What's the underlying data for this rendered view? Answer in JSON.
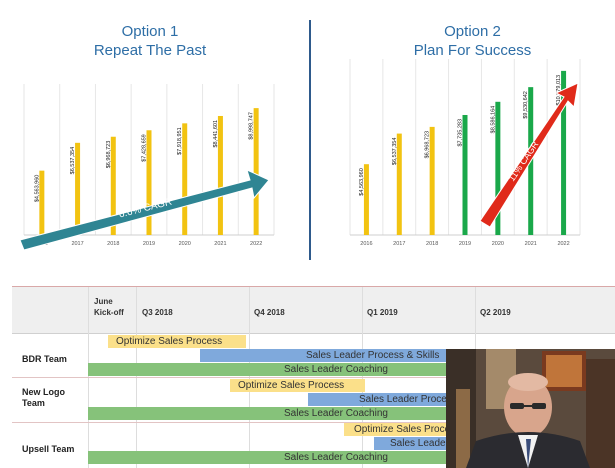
{
  "option1": {
    "title_line1": "Option 1",
    "title_line2": "Repeat The Past",
    "cagr_label": "6.6% CAGR"
  },
  "option2": {
    "title_line1": "Option 2",
    "title_line2": "Plan For Success",
    "cagr_label": "11% CAGR"
  },
  "colors": {
    "title": "#2e6ea6",
    "gold": "#f2c311",
    "green": "#1aa84a",
    "teal_arrow": "#2f8593",
    "red_arrow": "#e02a1a",
    "divider": "#2e5a8c"
  },
  "chart_data": [
    {
      "type": "bar",
      "title": "Option 1 Repeat The Past",
      "categories": [
        "2016",
        "2017",
        "2018",
        "2019",
        "2020",
        "2021",
        "2022"
      ],
      "values": [
        4563960,
        6537354,
        6968723,
        7428659,
        7918951,
        8441601,
        8998747
      ],
      "value_labels": [
        "$4,563,960",
        "$6,537,354",
        "$6,968,723",
        "$7,428,659",
        "$7,918,951",
        "$8,441,601",
        "$8,998,747"
      ],
      "bar_colors": [
        "gold",
        "gold",
        "gold",
        "gold",
        "gold",
        "gold",
        "gold"
      ],
      "annotation": "6.6% CAGR",
      "grid": true
    },
    {
      "type": "bar",
      "title": "Option 2 Plan For Success",
      "categories": [
        "2016",
        "2017",
        "2018",
        "2019",
        "2020",
        "2021",
        "2022"
      ],
      "values": [
        4563960,
        6537354,
        6968723,
        7735283,
        8586164,
        9530642,
        10579013
      ],
      "value_labels": [
        "$4,563,960",
        "$6,537,354",
        "$6,968,723",
        "$7,735,283",
        "$8,586,164",
        "$9,530,642",
        "$10,579,013"
      ],
      "bar_colors": [
        "gold",
        "gold",
        "gold",
        "green",
        "green",
        "green",
        "green"
      ],
      "annotation": "11% CAGR",
      "grid": true
    }
  ],
  "gantt": {
    "headers": [
      "June Kick-off",
      "Q3 2018",
      "Q4 2018",
      "Q1 2019",
      "Q2 2019"
    ],
    "teams": [
      "BDR Team",
      "New Logo Team",
      "Upsell Team"
    ],
    "tasks": {
      "optimize": "Optimize Sales Process",
      "leader_process_full": "Sales Leader Process & Skills",
      "leader_process_cut": "Sales Leader Proce",
      "leader_process_cut2": "Sales Leade",
      "coaching": "Sales Leader Coaching"
    }
  },
  "video": {
    "label": "presenter-webcam"
  }
}
